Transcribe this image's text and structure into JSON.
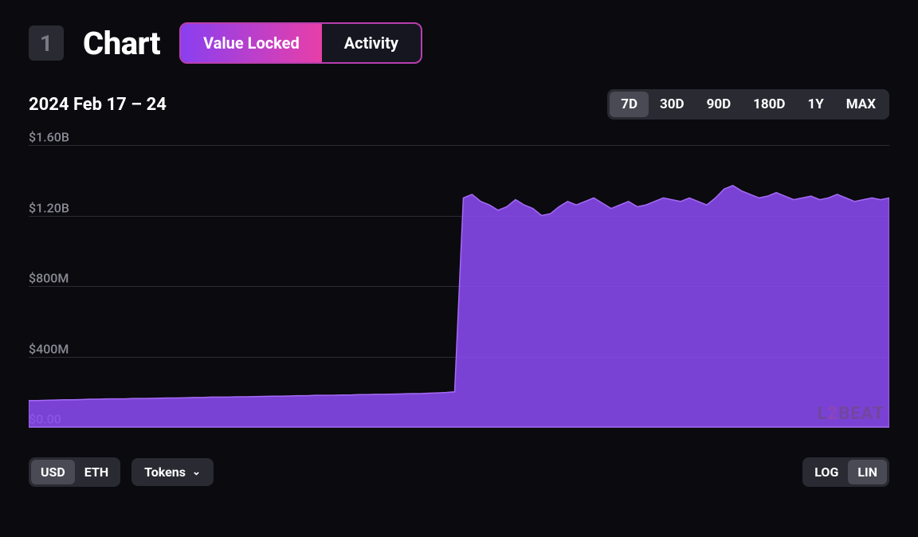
{
  "header": {
    "rank": "1",
    "title": "Chart",
    "tabs": [
      {
        "label": "Value Locked",
        "active": true
      },
      {
        "label": "Activity",
        "active": false
      }
    ]
  },
  "date_range_label": "2024 Feb 17 – 24",
  "time_ranges": [
    {
      "label": "7D",
      "active": true
    },
    {
      "label": "30D",
      "active": false
    },
    {
      "label": "90D",
      "active": false
    },
    {
      "label": "180D",
      "active": false
    },
    {
      "label": "1Y",
      "active": false
    },
    {
      "label": "MAX",
      "active": false
    }
  ],
  "chart": {
    "type": "area",
    "background_color": "#0a0a0f",
    "grid_color": "#2c2c36",
    "fill_color": "#8a4af0",
    "fill_opacity": 0.88,
    "stroke_color": "#a56af5",
    "stroke_width": 1.5,
    "watermark": "L2BEAT",
    "y_axis": {
      "min": 0,
      "max": 1600000000,
      "ticks": [
        {
          "value": 1600000000,
          "label": "$1.60B"
        },
        {
          "value": 1200000000,
          "label": "$1.20B"
        },
        {
          "value": 800000000,
          "label": "$800M"
        },
        {
          "value": 400000000,
          "label": "$400M"
        },
        {
          "value": 0,
          "label": "$0.00"
        }
      ],
      "label_fontsize": 16,
      "label_color": "#8a8a95"
    },
    "series": {
      "name": "Value Locked (USD)",
      "unit": "USD",
      "values": [
        150000000,
        150000000,
        152000000,
        153000000,
        155000000,
        155000000,
        156000000,
        158000000,
        158000000,
        160000000,
        160000000,
        160000000,
        162000000,
        162000000,
        163000000,
        164000000,
        165000000,
        165000000,
        166000000,
        168000000,
        168000000,
        170000000,
        170000000,
        170000000,
        172000000,
        172000000,
        173000000,
        174000000,
        175000000,
        175000000,
        176000000,
        178000000,
        178000000,
        180000000,
        180000000,
        180000000,
        182000000,
        182000000,
        184000000,
        184000000,
        186000000,
        186000000,
        187000000,
        188000000,
        190000000,
        190000000,
        192000000,
        194000000,
        196000000,
        200000000,
        1300000000,
        1320000000,
        1280000000,
        1260000000,
        1230000000,
        1250000000,
        1290000000,
        1260000000,
        1240000000,
        1200000000,
        1210000000,
        1250000000,
        1280000000,
        1260000000,
        1280000000,
        1300000000,
        1270000000,
        1240000000,
        1260000000,
        1280000000,
        1250000000,
        1260000000,
        1280000000,
        1300000000,
        1290000000,
        1280000000,
        1300000000,
        1280000000,
        1260000000,
        1300000000,
        1350000000,
        1370000000,
        1340000000,
        1320000000,
        1300000000,
        1310000000,
        1330000000,
        1310000000,
        1290000000,
        1300000000,
        1310000000,
        1290000000,
        1300000000,
        1320000000,
        1300000000,
        1280000000,
        1290000000,
        1300000000,
        1290000000,
        1300000000
      ]
    }
  },
  "footer": {
    "currency_toggle": [
      {
        "label": "USD",
        "active": true
      },
      {
        "label": "ETH",
        "active": false
      }
    ],
    "tokens_button": "Tokens",
    "scale_toggle": [
      {
        "label": "LOG",
        "active": false
      },
      {
        "label": "LIN",
        "active": true
      }
    ]
  },
  "colors": {
    "bg": "#0a0a0f",
    "panel": "#2a2a33",
    "panel_active": "#4a4a55",
    "tab_border": "#b83fae",
    "tab_gradient_start": "#8a3ff0",
    "tab_gradient_end": "#e83fa8",
    "text": "#ffffff",
    "text_muted": "#8a8a95"
  }
}
